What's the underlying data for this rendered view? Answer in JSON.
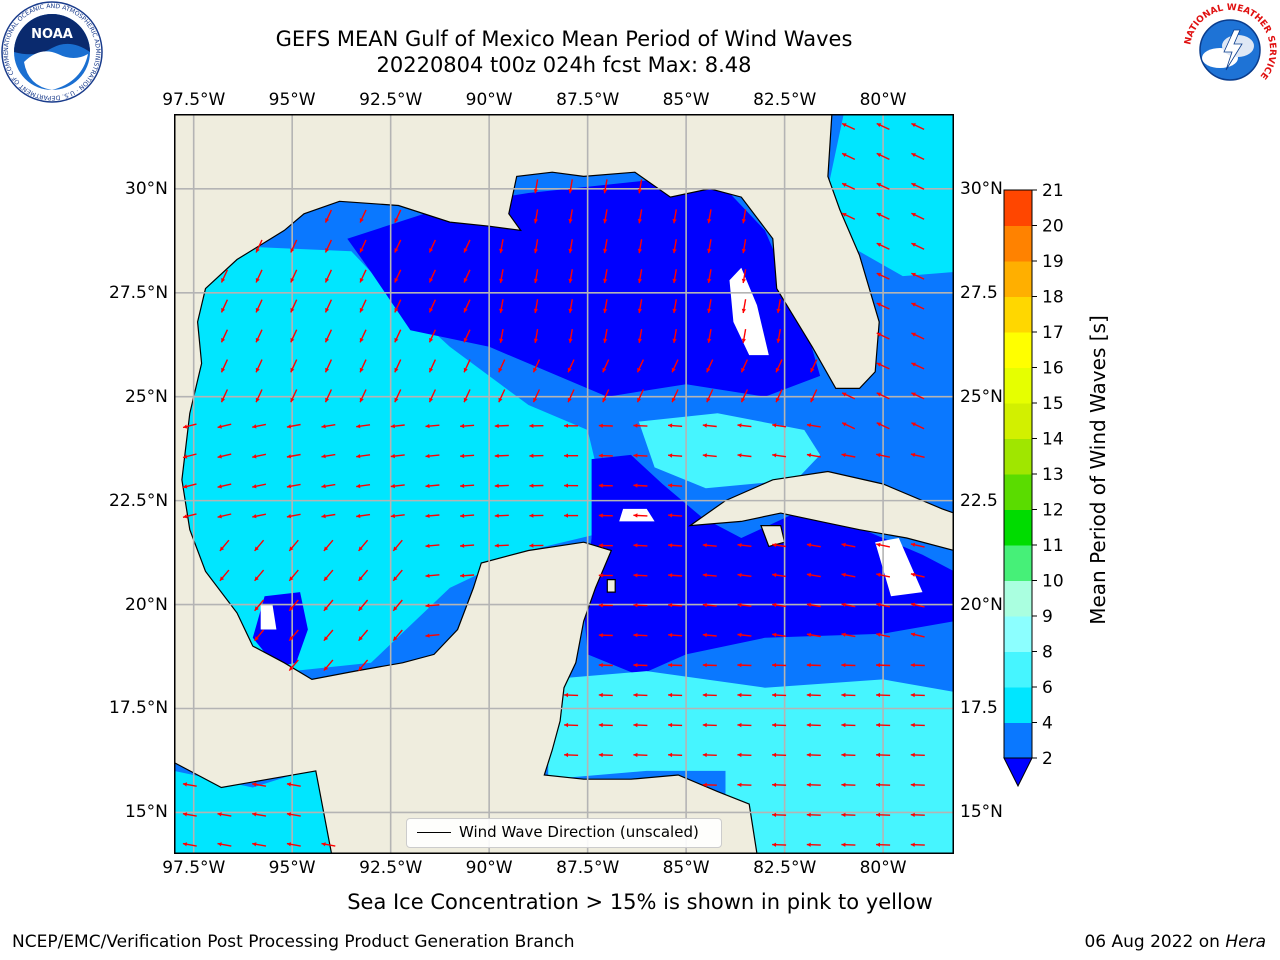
{
  "title": {
    "line1": "GEFS MEAN Gulf of Mexico Mean Period of Wind Waves",
    "line2": "20220804 t00z 024h fcst   Max: 8.48"
  },
  "map": {
    "lon_labels": [
      "97.5°W",
      "95°W",
      "92.5°W",
      "90°W",
      "87.5°W",
      "85°W",
      "82.5°W",
      "80°W"
    ],
    "lat_labels_left": [
      "30°N",
      "27.5°N",
      "25°N",
      "22.5°N",
      "20°N",
      "17.5°N",
      "15°N"
    ],
    "lat_labels_right": [
      "30°N",
      "27.5",
      "25°N",
      "22.5",
      "20°N",
      "17.5",
      "15°N"
    ],
    "lon_range": [
      -98.0,
      -78.2
    ],
    "lat_range": [
      14.0,
      31.8
    ],
    "land_color": "#efedde",
    "grid_color": "#b4b4b4",
    "arrow_color": "#ff0000",
    "legend_label": "Wind Wave Direction (unscaled)"
  },
  "colorbar": {
    "label": "Mean Period of Wind Waves [s]",
    "ticks": [
      "2",
      "4",
      "6",
      "8",
      "9",
      "10",
      "11",
      "12",
      "13",
      "14",
      "15",
      "16",
      "17",
      "18",
      "19",
      "20",
      "21"
    ],
    "colors": [
      "#0a78ff",
      "#00e6ff",
      "#46f5ff",
      "#8cffff",
      "#aaffe0",
      "#46f078",
      "#00dc00",
      "#5adc00",
      "#a0e600",
      "#d2f000",
      "#e6ff00",
      "#ffff00",
      "#ffd700",
      "#ffaf00",
      "#ff8200",
      "#ff4600",
      "#ff0000"
    ],
    "under_color": "#0000ff"
  },
  "caption": "Sea Ice Concentration > 15% is shown in pink to yellow",
  "footer": {
    "left": "NCEP/EMC/Verification Post Processing Product Generation Branch",
    "date": "06 Aug 2022 on",
    "host": "Hera"
  },
  "logos": {
    "left": "NOAA",
    "left_ring": "NATIONAL OCEANIC AND ATMOSPHERIC ADMINISTRATION · U.S. DEPARTMENT OF COMMERCE",
    "right_ring": "NATIONAL WEATHER SERVICE"
  }
}
